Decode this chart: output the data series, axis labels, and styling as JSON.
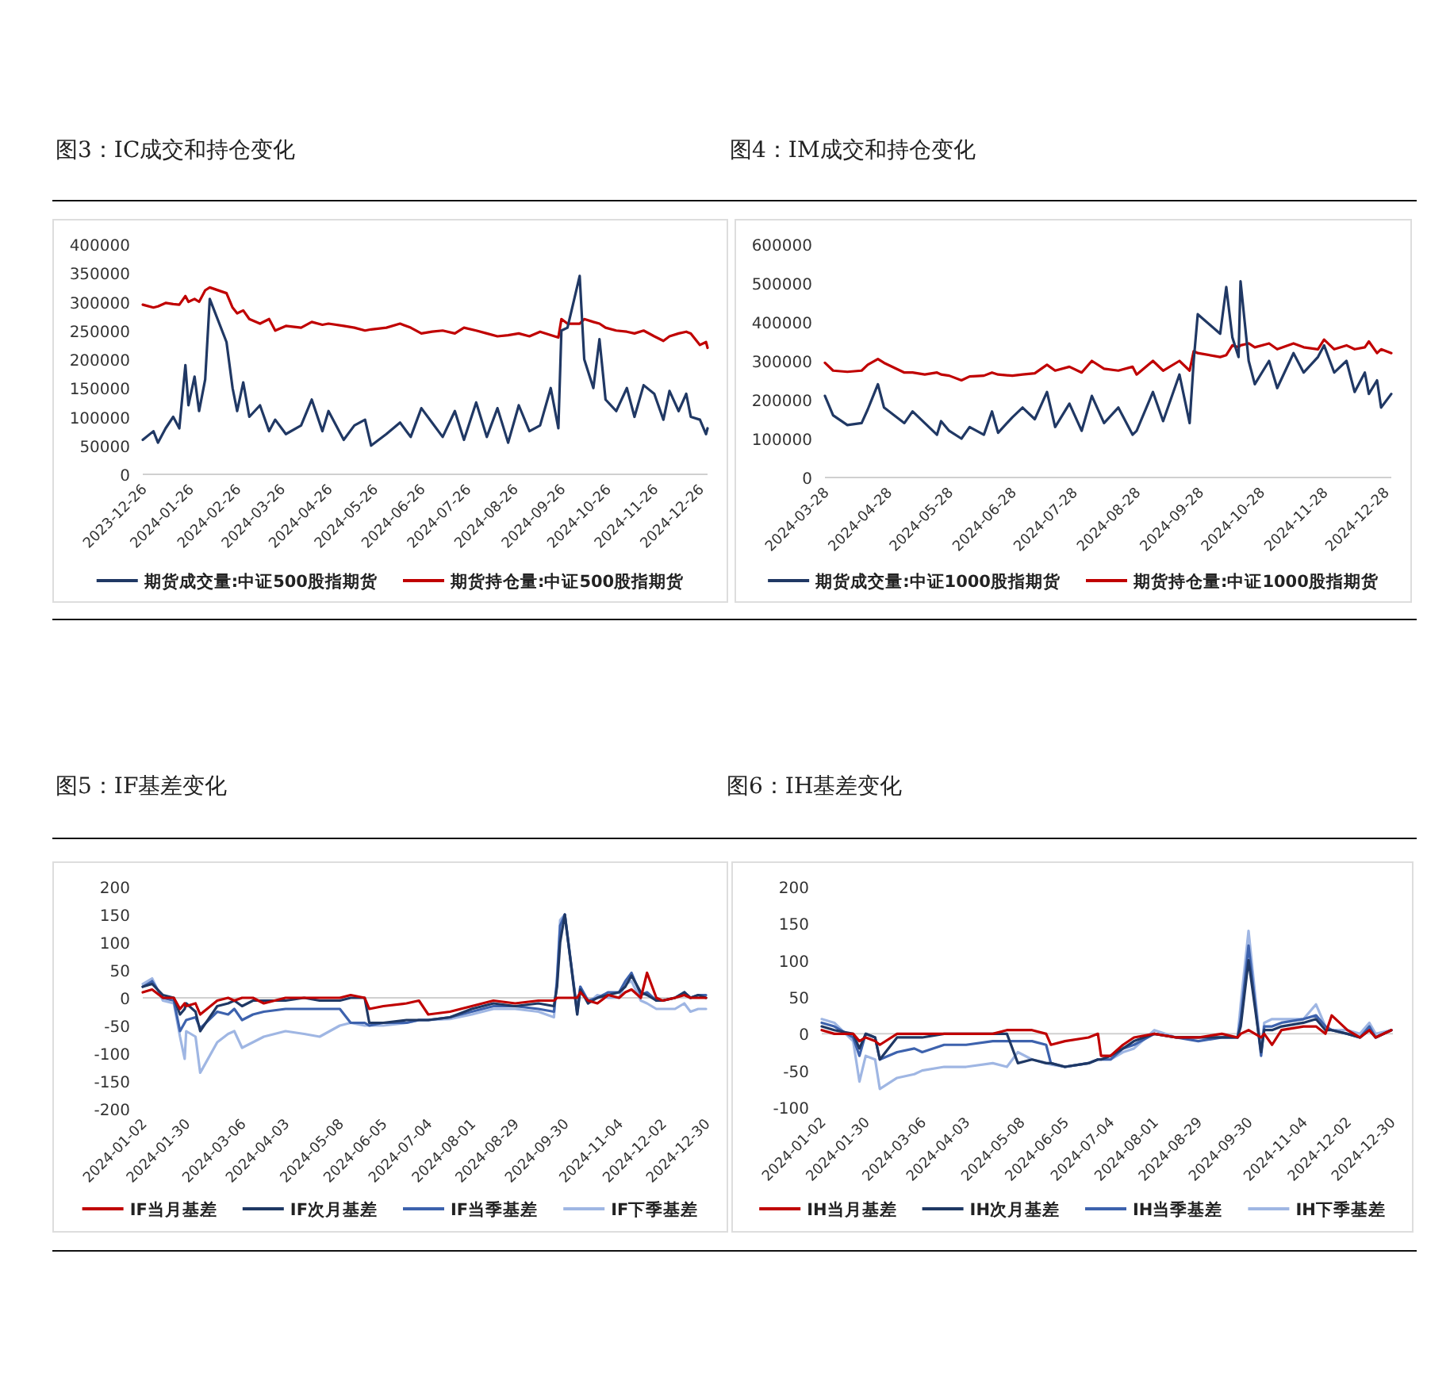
{
  "chart_data": [
    {
      "type": "line",
      "title": "图3：IC成交和持仓变化",
      "legend": "bottom",
      "xlim": [
        "2023-12-26",
        "2024-12-31"
      ],
      "xticks": [
        "2023-12-26",
        "2024-01-26",
        "2024-02-26",
        "2024-03-26",
        "2024-04-26",
        "2024-05-26",
        "2024-06-26",
        "2024-07-26",
        "2024-08-26",
        "2024-09-26",
        "2024-10-26",
        "2024-11-26",
        "2024-12-26"
      ],
      "ylim": [
        0,
        400000
      ],
      "yticks": [
        0,
        50000,
        100000,
        150000,
        200000,
        250000,
        300000,
        350000,
        400000
      ],
      "x": [
        "2023-12-26",
        "2024-01-02",
        "2024-01-05",
        "2024-01-10",
        "2024-01-15",
        "2024-01-19",
        "2024-01-23",
        "2024-01-25",
        "2024-01-29",
        "2024-02-01",
        "2024-02-05",
        "2024-02-08",
        "2024-02-19",
        "2024-02-23",
        "2024-02-26",
        "2024-03-01",
        "2024-03-05",
        "2024-03-12",
        "2024-03-18",
        "2024-03-22",
        "2024-03-29",
        "2024-04-08",
        "2024-04-15",
        "2024-04-22",
        "2024-04-26",
        "2024-05-06",
        "2024-05-13",
        "2024-05-20",
        "2024-05-24",
        "2024-06-03",
        "2024-06-12",
        "2024-06-19",
        "2024-06-26",
        "2024-07-03",
        "2024-07-10",
        "2024-07-18",
        "2024-07-24",
        "2024-08-01",
        "2024-08-08",
        "2024-08-15",
        "2024-08-22",
        "2024-08-29",
        "2024-09-05",
        "2024-09-12",
        "2024-09-19",
        "2024-09-24",
        "2024-09-26",
        "2024-09-30",
        "2024-10-08",
        "2024-10-11",
        "2024-10-17",
        "2024-10-21",
        "2024-10-25",
        "2024-11-01",
        "2024-11-08",
        "2024-11-13",
        "2024-11-19",
        "2024-11-26",
        "2024-12-02",
        "2024-12-06",
        "2024-12-12",
        "2024-12-17",
        "2024-12-20",
        "2024-12-26",
        "2024-12-30",
        "2024-12-31"
      ],
      "series": [
        {
          "name": "期货成交量:中证500股指期货",
          "color": "#203864",
          "values": [
            60000,
            75000,
            55000,
            80000,
            100000,
            80000,
            190000,
            120000,
            170000,
            110000,
            165000,
            305000,
            230000,
            150000,
            110000,
            160000,
            100000,
            120000,
            75000,
            95000,
            70000,
            85000,
            130000,
            75000,
            110000,
            60000,
            85000,
            95000,
            50000,
            70000,
            90000,
            65000,
            115000,
            90000,
            65000,
            110000,
            60000,
            125000,
            65000,
            115000,
            55000,
            120000,
            75000,
            85000,
            150000,
            80000,
            250000,
            255000,
            345000,
            200000,
            150000,
            235000,
            130000,
            110000,
            150000,
            100000,
            155000,
            140000,
            95000,
            145000,
            110000,
            140000,
            100000,
            95000,
            70000,
            80000
          ]
        },
        {
          "name": "期货持仓量:中证500股指期货",
          "color": "#c00000",
          "values": [
            295000,
            290000,
            292000,
            298000,
            296000,
            295000,
            310000,
            300000,
            305000,
            300000,
            320000,
            325000,
            315000,
            290000,
            280000,
            285000,
            270000,
            262000,
            270000,
            250000,
            258000,
            255000,
            265000,
            260000,
            262000,
            258000,
            255000,
            250000,
            252000,
            255000,
            262000,
            255000,
            245000,
            248000,
            250000,
            245000,
            255000,
            250000,
            245000,
            240000,
            242000,
            245000,
            240000,
            248000,
            242000,
            238000,
            270000,
            262000,
            262000,
            270000,
            265000,
            262000,
            255000,
            250000,
            248000,
            245000,
            250000,
            240000,
            232000,
            240000,
            245000,
            248000,
            245000,
            225000,
            230000,
            220000
          ]
        }
      ]
    },
    {
      "type": "line",
      "title": "图4：IM成交和持仓变化",
      "legend": "bottom",
      "xlim": [
        "2024-03-28",
        "2024-12-31"
      ],
      "xticks": [
        "2024-03-28",
        "2024-04-28",
        "2024-05-28",
        "2024-06-28",
        "2024-07-28",
        "2024-08-28",
        "2024-09-28",
        "2024-10-28",
        "2024-11-28",
        "2024-12-28"
      ],
      "ylim": [
        0,
        600000
      ],
      "yticks": [
        0,
        100000,
        200000,
        300000,
        400000,
        500000,
        600000
      ],
      "x": [
        "2024-03-28",
        "2024-04-01",
        "2024-04-08",
        "2024-04-15",
        "2024-04-18",
        "2024-04-23",
        "2024-04-26",
        "2024-05-06",
        "2024-05-10",
        "2024-05-16",
        "2024-05-22",
        "2024-05-24",
        "2024-05-28",
        "2024-06-03",
        "2024-06-07",
        "2024-06-14",
        "2024-06-18",
        "2024-06-21",
        "2024-06-28",
        "2024-07-03",
        "2024-07-09",
        "2024-07-15",
        "2024-07-19",
        "2024-07-26",
        "2024-08-01",
        "2024-08-06",
        "2024-08-12",
        "2024-08-19",
        "2024-08-26",
        "2024-08-28",
        "2024-09-05",
        "2024-09-10",
        "2024-09-18",
        "2024-09-23",
        "2024-09-25",
        "2024-09-27",
        "2024-10-08",
        "2024-10-11",
        "2024-10-14",
        "2024-10-17",
        "2024-10-18",
        "2024-10-22",
        "2024-10-25",
        "2024-11-01",
        "2024-11-05",
        "2024-11-13",
        "2024-11-18",
        "2024-11-25",
        "2024-11-28",
        "2024-12-03",
        "2024-12-09",
        "2024-12-13",
        "2024-12-18",
        "2024-12-20",
        "2024-12-24",
        "2024-12-26",
        "2024-12-31"
      ],
      "series": [
        {
          "name": "期货成交量:中证1000股指期货",
          "color": "#203864",
          "values": [
            210000,
            160000,
            135000,
            140000,
            175000,
            240000,
            180000,
            140000,
            170000,
            140000,
            110000,
            145000,
            120000,
            100000,
            130000,
            110000,
            170000,
            115000,
            155000,
            180000,
            150000,
            220000,
            130000,
            190000,
            120000,
            210000,
            140000,
            180000,
            110000,
            120000,
            220000,
            145000,
            265000,
            140000,
            300000,
            420000,
            370000,
            490000,
            360000,
            310000,
            505000,
            300000,
            240000,
            300000,
            230000,
            320000,
            270000,
            310000,
            340000,
            270000,
            300000,
            220000,
            270000,
            215000,
            250000,
            180000,
            215000
          ]
        },
        {
          "name": "期货持仓量:中证1000股指期货",
          "color": "#c00000",
          "values": [
            295000,
            275000,
            272000,
            275000,
            290000,
            305000,
            295000,
            270000,
            270000,
            265000,
            270000,
            265000,
            262000,
            250000,
            260000,
            262000,
            270000,
            265000,
            262000,
            265000,
            268000,
            290000,
            275000,
            285000,
            270000,
            300000,
            280000,
            275000,
            285000,
            265000,
            300000,
            275000,
            300000,
            275000,
            325000,
            320000,
            310000,
            315000,
            340000,
            335000,
            340000,
            345000,
            335000,
            345000,
            330000,
            345000,
            335000,
            330000,
            355000,
            330000,
            340000,
            330000,
            335000,
            350000,
            320000,
            330000,
            320000
          ]
        }
      ]
    },
    {
      "type": "line",
      "title": "图5：IF基差变化",
      "legend": "bottom",
      "xlim": [
        "2024-01-02",
        "2024-12-31"
      ],
      "xticks": [
        "2024-01-02",
        "2024-01-30",
        "2024-03-06",
        "2024-04-03",
        "2024-05-08",
        "2024-06-05",
        "2024-07-04",
        "2024-08-01",
        "2024-08-29",
        "2024-09-30",
        "2024-11-04",
        "2024-12-02",
        "2024-12-30"
      ],
      "ylim": [
        -200,
        200
      ],
      "yticks": [
        -200,
        -150,
        -100,
        -50,
        0,
        50,
        100,
        150,
        200
      ],
      "x": [
        "2024-01-02",
        "2024-01-08",
        "2024-01-15",
        "2024-01-22",
        "2024-01-26",
        "2024-01-29",
        "2024-01-30",
        "2024-02-05",
        "2024-02-08",
        "2024-02-19",
        "2024-02-26",
        "2024-03-01",
        "2024-03-06",
        "2024-03-13",
        "2024-03-20",
        "2024-04-03",
        "2024-04-15",
        "2024-04-25",
        "2024-05-08",
        "2024-05-15",
        "2024-05-24",
        "2024-05-27",
        "2024-06-05",
        "2024-06-20",
        "2024-06-28",
        "2024-07-04",
        "2024-07-18",
        "2024-08-01",
        "2024-08-15",
        "2024-08-29",
        "2024-09-13",
        "2024-09-23",
        "2024-09-25",
        "2024-09-27",
        "2024-09-30",
        "2024-10-08",
        "2024-10-10",
        "2024-10-15",
        "2024-10-21",
        "2024-10-28",
        "2024-11-04",
        "2024-11-08",
        "2024-11-12",
        "2024-11-18",
        "2024-11-22",
        "2024-11-28",
        "2024-12-02",
        "2024-12-10",
        "2024-12-16",
        "2024-12-20",
        "2024-12-25",
        "2024-12-30"
      ],
      "series": [
        {
          "name": "IF当月基差",
          "color": "#c00000",
          "values": [
            10,
            15,
            0,
            0,
            -20,
            -10,
            -15,
            -10,
            -30,
            -5,
            0,
            -5,
            0,
            0,
            -10,
            0,
            0,
            0,
            0,
            5,
            0,
            -20,
            -15,
            -10,
            -5,
            -30,
            -25,
            -15,
            -5,
            -10,
            -5,
            -5,
            0,
            0,
            0,
            0,
            10,
            -5,
            -10,
            5,
            0,
            10,
            15,
            0,
            45,
            0,
            -5,
            0,
            5,
            0,
            0,
            0
          ]
        },
        {
          "name": "IF次月基差",
          "color": "#1f3864",
          "values": [
            20,
            25,
            5,
            0,
            -30,
            -20,
            -10,
            -25,
            -60,
            -15,
            -10,
            -5,
            -15,
            -5,
            -5,
            -5,
            0,
            -5,
            -5,
            0,
            0,
            -45,
            -45,
            -40,
            -40,
            -40,
            -35,
            -20,
            -10,
            -15,
            -10,
            -15,
            20,
            100,
            150,
            -30,
            15,
            -10,
            0,
            5,
            10,
            20,
            40,
            10,
            5,
            -5,
            -5,
            0,
            10,
            0,
            5,
            0
          ]
        },
        {
          "name": "IF当季基差",
          "color": "#3d62ad",
          "values": [
            20,
            30,
            0,
            -5,
            -60,
            -45,
            -40,
            -35,
            -55,
            -25,
            -30,
            -20,
            -40,
            -30,
            -25,
            -20,
            -20,
            -20,
            -20,
            -45,
            -45,
            -50,
            -45,
            -45,
            -40,
            -40,
            -35,
            -25,
            -15,
            -15,
            -20,
            -25,
            30,
            130,
            150,
            -25,
            20,
            -5,
            0,
            10,
            10,
            30,
            45,
            5,
            10,
            -5,
            -5,
            0,
            10,
            0,
            5,
            5
          ]
        },
        {
          "name": "IF下季基差",
          "color": "#9fb6e3",
          "values": [
            25,
            35,
            -5,
            -10,
            -70,
            -110,
            -60,
            -70,
            -135,
            -80,
            -65,
            -60,
            -90,
            -80,
            -70,
            -60,
            -65,
            -70,
            -50,
            -45,
            -50,
            -50,
            -50,
            -45,
            -40,
            -40,
            -38,
            -30,
            -20,
            -20,
            -25,
            -35,
            40,
            140,
            150,
            -30,
            20,
            -10,
            5,
            0,
            0,
            25,
            30,
            -5,
            -10,
            -20,
            -20,
            -20,
            -10,
            -25,
            -20,
            -20
          ]
        }
      ]
    },
    {
      "type": "line",
      "title": "图6：IH基差变化",
      "legend": "bottom",
      "xlim": [
        "2024-01-02",
        "2024-12-31"
      ],
      "xticks": [
        "2024-01-02",
        "2024-01-30",
        "2024-03-06",
        "2024-04-03",
        "2024-05-08",
        "2024-06-05",
        "2024-07-04",
        "2024-08-01",
        "2024-08-29",
        "2024-09-30",
        "2024-11-04",
        "2024-12-02",
        "2024-12-30"
      ],
      "ylim": [
        -100,
        200
      ],
      "yticks": [
        -100,
        -50,
        0,
        50,
        100,
        150,
        200
      ],
      "x": [
        "2024-01-02",
        "2024-01-10",
        "2024-01-22",
        "2024-01-26",
        "2024-01-30",
        "2024-02-05",
        "2024-02-08",
        "2024-02-19",
        "2024-03-01",
        "2024-03-06",
        "2024-03-20",
        "2024-04-03",
        "2024-04-20",
        "2024-04-29",
        "2024-05-06",
        "2024-05-15",
        "2024-05-24",
        "2024-05-27",
        "2024-06-05",
        "2024-06-20",
        "2024-06-26",
        "2024-06-28",
        "2024-07-04",
        "2024-07-12",
        "2024-07-19",
        "2024-08-01",
        "2024-08-15",
        "2024-08-29",
        "2024-09-13",
        "2024-09-23",
        "2024-09-25",
        "2024-09-30",
        "2024-10-08",
        "2024-10-10",
        "2024-10-15",
        "2024-10-21",
        "2024-11-04",
        "2024-11-12",
        "2024-11-18",
        "2024-11-22",
        "2024-12-02",
        "2024-12-10",
        "2024-12-16",
        "2024-12-20",
        "2024-12-30"
      ],
      "series": [
        {
          "name": "IH当月基差",
          "color": "#c00000",
          "values": [
            5,
            0,
            0,
            -10,
            -5,
            -10,
            -15,
            0,
            0,
            0,
            0,
            0,
            0,
            5,
            5,
            5,
            0,
            -15,
            -10,
            -5,
            0,
            -30,
            -30,
            -15,
            -5,
            0,
            -5,
            -5,
            0,
            -5,
            0,
            5,
            -5,
            0,
            -15,
            5,
            10,
            10,
            0,
            25,
            5,
            -5,
            5,
            -5,
            5
          ]
        },
        {
          "name": "IH次月基差",
          "color": "#1f3864",
          "values": [
            10,
            5,
            0,
            -20,
            0,
            -5,
            -35,
            -5,
            -5,
            -5,
            0,
            0,
            0,
            0,
            -40,
            -35,
            -40,
            -40,
            -45,
            -40,
            -35,
            -35,
            -30,
            -20,
            -10,
            0,
            -5,
            -5,
            -5,
            -5,
            10,
            100,
            -25,
            5,
            5,
            10,
            15,
            20,
            5,
            5,
            0,
            -5,
            5,
            -5,
            5
          ]
        },
        {
          "name": "IH当季基差",
          "color": "#3d62ad",
          "values": [
            15,
            10,
            -5,
            -30,
            0,
            -5,
            -35,
            -25,
            -20,
            -25,
            -15,
            -15,
            -10,
            -10,
            -10,
            -10,
            -15,
            -40,
            -45,
            -40,
            -35,
            -35,
            -35,
            -20,
            -15,
            0,
            -5,
            -10,
            -5,
            -5,
            20,
            120,
            -30,
            10,
            10,
            15,
            20,
            25,
            10,
            5,
            0,
            -5,
            10,
            -5,
            5
          ]
        },
        {
          "name": "IH下季基差",
          "color": "#9fb6e3",
          "values": [
            20,
            15,
            -10,
            -65,
            -30,
            -35,
            -75,
            -60,
            -55,
            -50,
            -45,
            -45,
            -40,
            -45,
            -25,
            -35,
            -40,
            -42,
            -45,
            -40,
            -35,
            -35,
            -35,
            -25,
            -20,
            5,
            -5,
            -5,
            -5,
            -5,
            40,
            140,
            -25,
            15,
            20,
            20,
            20,
            40,
            10,
            5,
            5,
            0,
            15,
            0,
            5
          ]
        }
      ]
    }
  ]
}
